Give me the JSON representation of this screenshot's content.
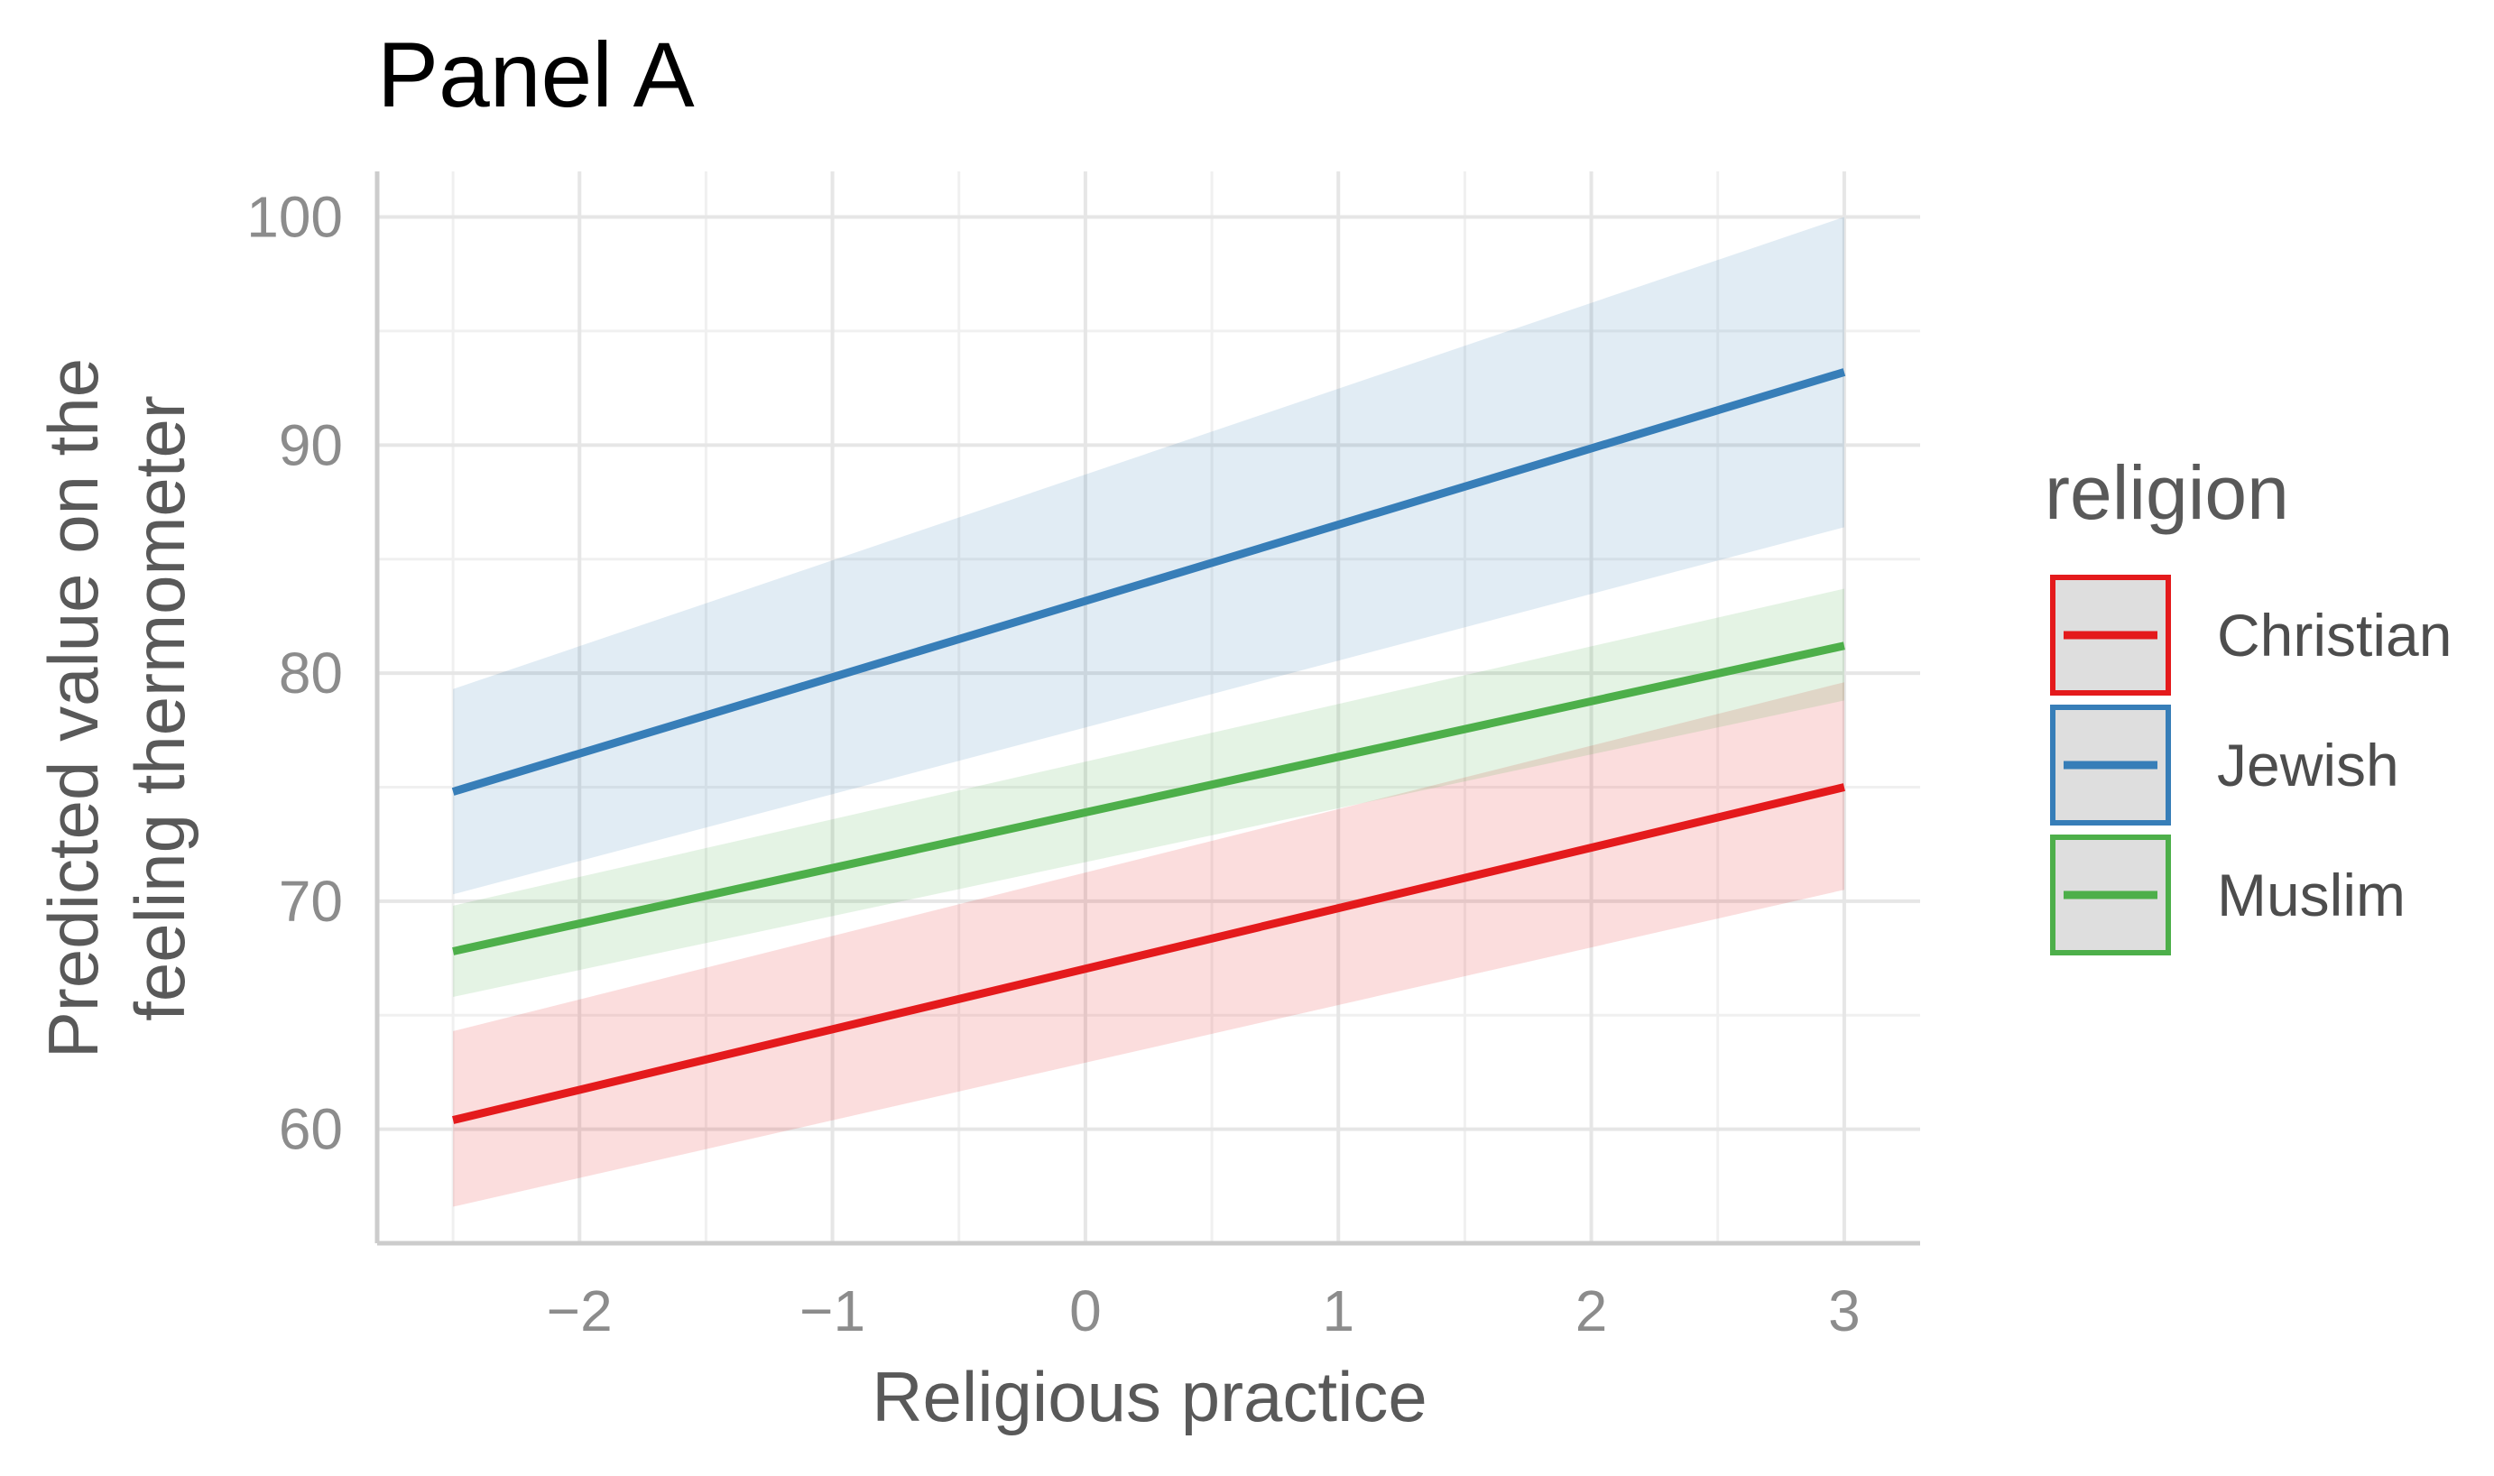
{
  "chart_data": {
    "type": "line",
    "title": "Panel A",
    "xlabel": "Religious practice",
    "ylabel_lines": [
      "Predicted value on the",
      "feeling thermometer"
    ],
    "xlim": [
      -2.8,
      3.3
    ],
    "ylim": [
      55,
      102
    ],
    "x_ticks": [
      -2,
      -1,
      0,
      1,
      2,
      3
    ],
    "x_tick_labels": [
      "−2",
      "−1",
      "0",
      "1",
      "2",
      "3"
    ],
    "y_ticks": [
      60,
      70,
      80,
      90,
      100
    ],
    "y_tick_labels": [
      "60",
      "70",
      "80",
      "90",
      "100"
    ],
    "grid": true,
    "legend": {
      "title": "religion",
      "position": "right"
    },
    "series": [
      {
        "name": "Christian",
        "color": "#e41a1c",
        "x": [
          -2.5,
          3
        ],
        "y": [
          60.4,
          75.0
        ],
        "lower": [
          56.6,
          70.5
        ],
        "upper": [
          64.3,
          79.6
        ]
      },
      {
        "name": "Jewish",
        "color": "#377eb8",
        "x": [
          -2.5,
          3
        ],
        "y": [
          74.8,
          93.2
        ],
        "lower": [
          70.3,
          86.4
        ],
        "upper": [
          79.3,
          100.0
        ]
      },
      {
        "name": "Muslim",
        "color": "#4daf4a",
        "x": [
          -2.5,
          3
        ],
        "y": [
          67.8,
          81.2
        ],
        "lower": [
          65.8,
          78.8
        ],
        "upper": [
          69.8,
          83.7
        ]
      }
    ]
  }
}
